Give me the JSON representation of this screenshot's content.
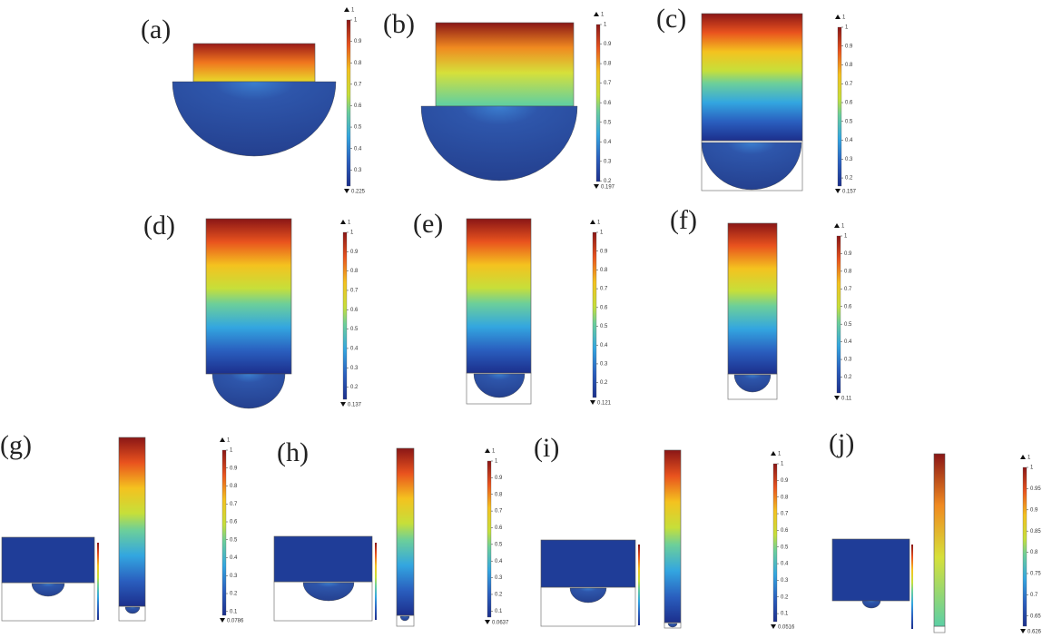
{
  "panels": [
    {
      "label": "(a)",
      "max": 1,
      "ticks": [
        1,
        0.9,
        0.8,
        0.7,
        0.6,
        0.5,
        0.4,
        0.3
      ],
      "min": 0.225
    },
    {
      "label": "(b)",
      "max": 1,
      "ticks": [
        1,
        0.9,
        0.8,
        0.7,
        0.6,
        0.5,
        0.4,
        0.3,
        0.2
      ],
      "min": 0.197
    },
    {
      "label": "(c)",
      "max": 1,
      "ticks": [
        1,
        0.9,
        0.8,
        0.7,
        0.6,
        0.5,
        0.4,
        0.3,
        0.2
      ],
      "min": 0.157
    },
    {
      "label": "(d)",
      "max": 1,
      "ticks": [
        1,
        0.9,
        0.8,
        0.7,
        0.6,
        0.5,
        0.4,
        0.3,
        0.2
      ],
      "min": 0.137
    },
    {
      "label": "(e)",
      "max": 1,
      "ticks": [
        1,
        0.9,
        0.8,
        0.7,
        0.6,
        0.5,
        0.4,
        0.3,
        0.2
      ],
      "min": 0.121
    },
    {
      "label": "(f)",
      "max": 1,
      "ticks": [
        1,
        0.9,
        0.8,
        0.7,
        0.6,
        0.5,
        0.4,
        0.3,
        0.2
      ],
      "min": 0.11
    },
    {
      "label": "(g)",
      "max": 1,
      "ticks": [
        1,
        0.9,
        0.8,
        0.7,
        0.6,
        0.5,
        0.4,
        0.3,
        0.2,
        0.1
      ],
      "min": 0.0786
    },
    {
      "label": "(h)",
      "max": 1,
      "ticks": [
        1,
        0.9,
        0.8,
        0.7,
        0.6,
        0.5,
        0.4,
        0.3,
        0.2,
        0.1
      ],
      "min": 0.0637
    },
    {
      "label": "(i)",
      "max": 1,
      "ticks": [
        1,
        0.9,
        0.8,
        0.7,
        0.6,
        0.5,
        0.4,
        0.3,
        0.2,
        0.1
      ],
      "min": 0.0516
    },
    {
      "label": "(j)",
      "max": 1,
      "ticks": [
        1,
        0.95,
        0.9,
        0.85,
        0.8,
        0.75,
        0.7,
        0.65
      ],
      "min": 0.626
    }
  ]
}
